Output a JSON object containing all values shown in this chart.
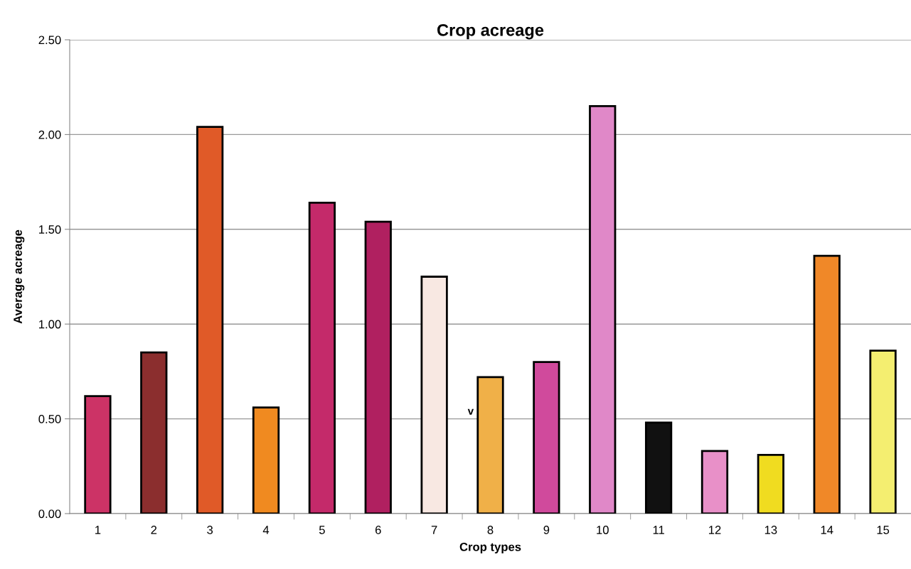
{
  "chart_data": {
    "type": "bar",
    "title": "Crop acreage",
    "xlabel": "Crop types",
    "ylabel": "Average acreage",
    "categories": [
      "1",
      "2",
      "3",
      "4",
      "5",
      "6",
      "7",
      "8",
      "9",
      "10",
      "11",
      "12",
      "13",
      "14",
      "15"
    ],
    "values": [
      0.62,
      0.85,
      2.04,
      0.56,
      1.64,
      1.54,
      1.25,
      0.72,
      0.8,
      2.15,
      0.48,
      0.33,
      0.31,
      1.36,
      0.86
    ],
    "colors": [
      "#cc3366",
      "#8b2e2e",
      "#e05a28",
      "#f08a20",
      "#c42a6a",
      "#b02060",
      "#f8e8e2",
      "#f0b048",
      "#d04a9c",
      "#e088c8",
      "#111111",
      "#e890c8",
      "#f0dc20",
      "#f08828",
      "#f4ee70"
    ],
    "ylim": [
      0,
      2.5
    ],
    "yticks": [
      {
        "value": 0,
        "label": "0.00"
      },
      {
        "value": 0.5,
        "label": "0.50"
      },
      {
        "value": 1,
        "label": "1.00"
      },
      {
        "value": 1.5,
        "label": "1.50"
      },
      {
        "value": 2,
        "label": "2.00"
      },
      {
        "value": 2.5,
        "label": "2.50"
      }
    ],
    "grid": "y",
    "annotations": [
      "v"
    ]
  }
}
